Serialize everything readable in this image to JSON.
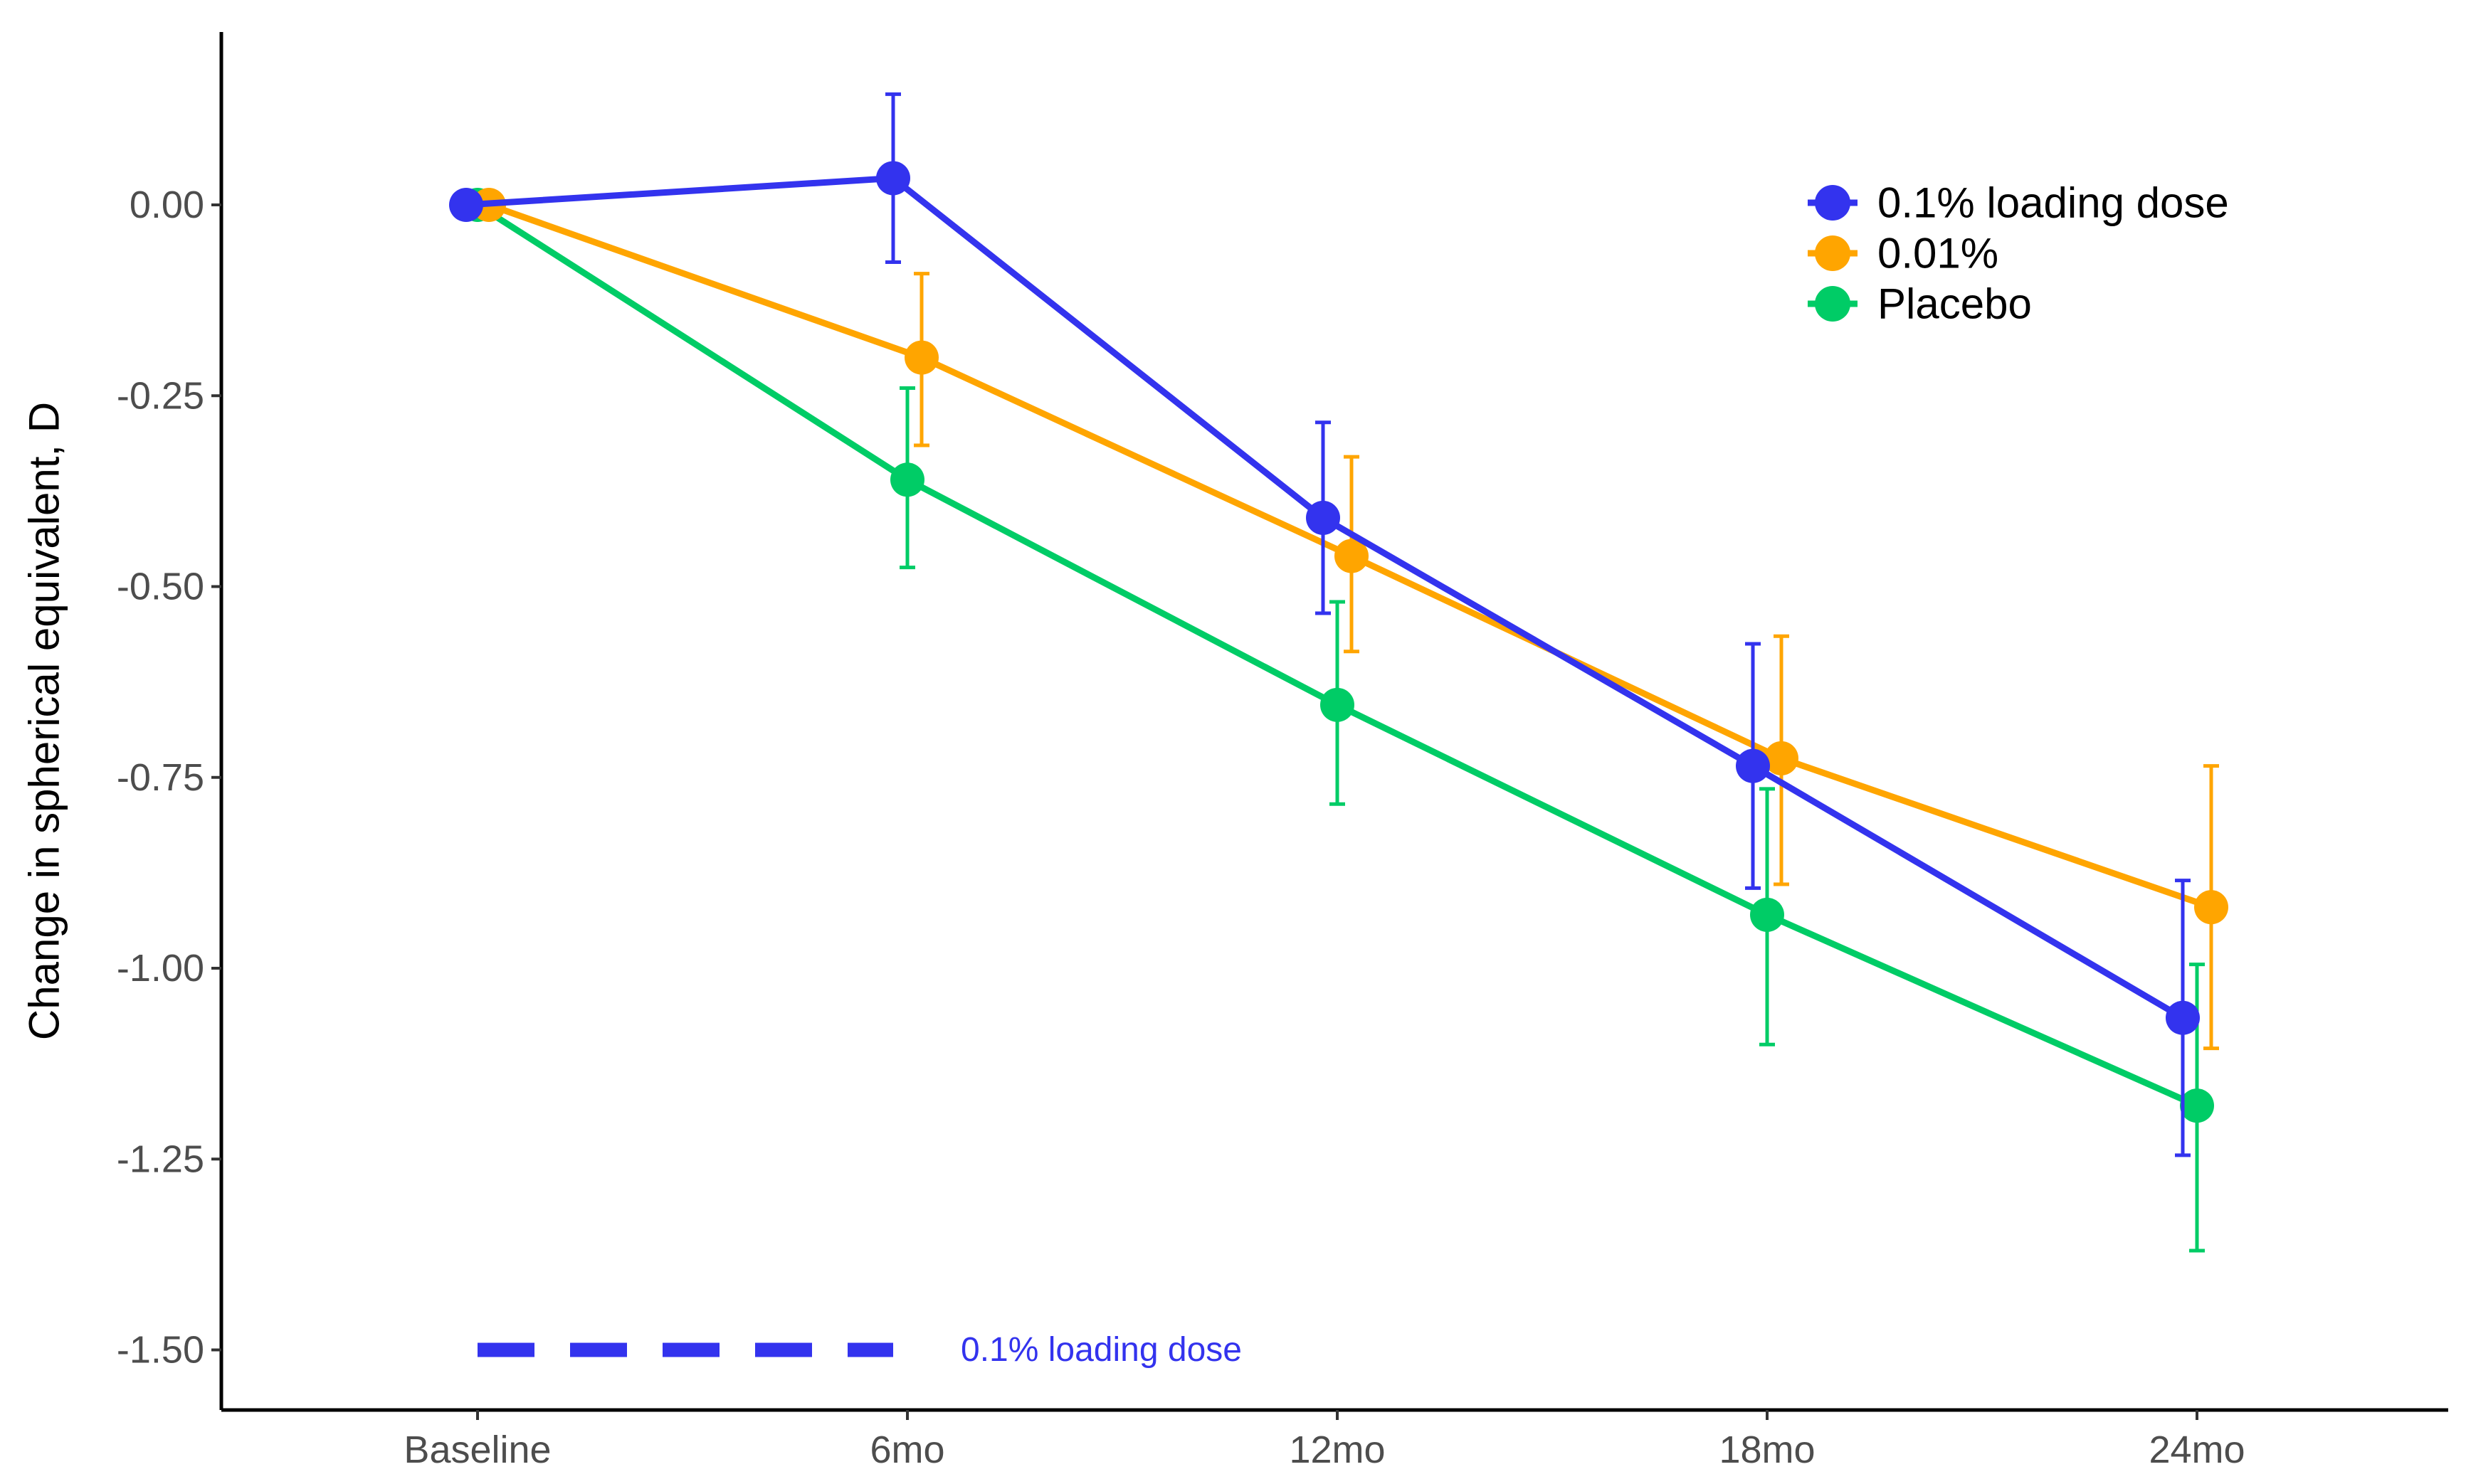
{
  "chart_data": {
    "type": "line",
    "title": "",
    "xlabel": "",
    "ylabel": "Change in spherical equivalent, D",
    "categories": [
      "Baseline",
      "6mo",
      "12mo",
      "18mo",
      "24mo"
    ],
    "ylim": [
      -1.6,
      0.23
    ],
    "yticks": [
      0.0,
      -0.25,
      -0.5,
      -0.75,
      -1.0,
      -1.25,
      -1.5
    ],
    "ytick_labels": [
      "0.00",
      "-0.25",
      "-0.50",
      "-0.75",
      "-1.00",
      "-1.25",
      "-1.50"
    ],
    "grid": false,
    "legend_position": "top-right",
    "series": [
      {
        "name": "0.1% loading dose",
        "color": "#3333ee",
        "values": [
          0.0,
          0.035,
          -0.41,
          -0.735,
          -1.065
        ],
        "error_low": [
          0.0,
          -0.075,
          -0.535,
          -0.895,
          -1.245
        ],
        "error_high": [
          0.0,
          0.145,
          -0.285,
          -0.575,
          -0.885
        ]
      },
      {
        "name": "0.01%",
        "color": "#ffa500",
        "values": [
          0.0,
          -0.2,
          -0.46,
          -0.725,
          -0.92
        ],
        "error_low": [
          0.0,
          -0.315,
          -0.585,
          -0.89,
          -1.105
        ],
        "error_high": [
          0.0,
          -0.09,
          -0.33,
          -0.565,
          -0.735
        ]
      },
      {
        "name": "Placebo",
        "color": "#00cc66",
        "values": [
          0.0,
          -0.36,
          -0.655,
          -0.93,
          -1.18
        ],
        "error_low": [
          0.0,
          -0.475,
          -0.785,
          -1.1,
          -1.37
        ],
        "error_high": [
          0.0,
          -0.24,
          -0.52,
          -0.765,
          -0.995
        ]
      }
    ],
    "annotation": {
      "text": "0.1% loading dose",
      "color": "#3333ee",
      "y": -1.5,
      "x_from": "Baseline",
      "x_to": "6mo"
    }
  }
}
